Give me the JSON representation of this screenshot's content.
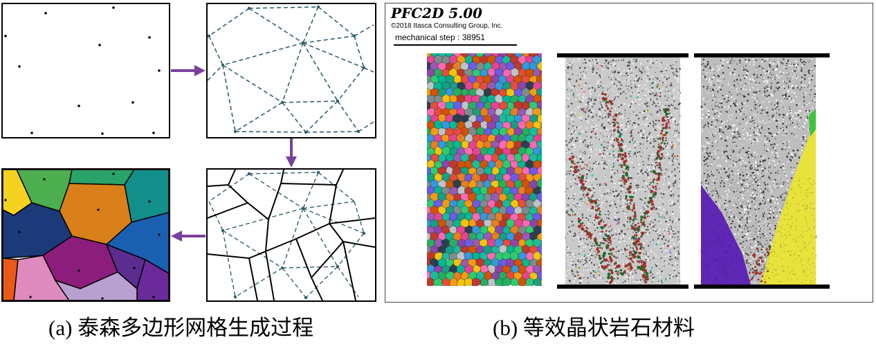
{
  "software": {
    "title": "PFC2D 5.00",
    "copyright": "©2018 Itasca Consulting Group, Inc.",
    "step_text": "mechanical step : 38951"
  },
  "captions": {
    "a": "(a) 泰森多边形网格生成过程",
    "b": "(b) 等效晶状岩石材料"
  },
  "colors": {
    "arrow": "#7b3f9e",
    "dashed_mesh": "#2f5f6e",
    "voronoi_edge": "#000000",
    "cells": [
      "#f4d21f",
      "#4cae4f",
      "#2aa36b",
      "#128f8a",
      "#d9801a",
      "#1c3a7a",
      "#8c1d7a",
      "#5a2d8e",
      "#e08bbf",
      "#b8a0d0",
      "#e85a16",
      "#1b5fb0",
      "#6a2a9a"
    ],
    "grain_palette": [
      "#e74c3c",
      "#f1c40f",
      "#2ecc71",
      "#3498db",
      "#9b59b6",
      "#e67e22",
      "#1abc9c",
      "#ff69b4",
      "#8e44ad",
      "#27ae60",
      "#d35400",
      "#16a085",
      "#c0392b",
      "#f39c12",
      "#7f8c8d",
      "#2c3e50",
      "#bdc3c7",
      "#e84393",
      "#00b894",
      "#6c5ce7"
    ],
    "crack_red": "#a0302a",
    "region_purple": "#5a1fb5",
    "region_yellow": "#e8e23a",
    "region_green": "#3cc43c"
  }
}
